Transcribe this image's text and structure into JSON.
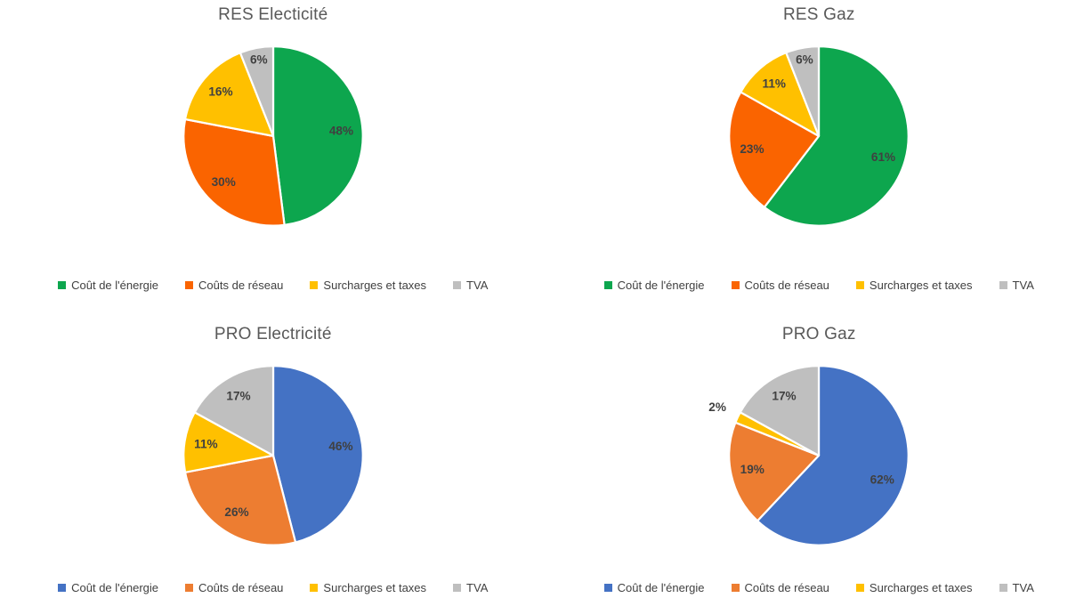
{
  "page": {
    "background": "#FFFFFF",
    "title_color": "#595959",
    "data_label_color": "#404040",
    "legend_text_color": "#404040"
  },
  "chart_data": [
    {
      "type": "pie",
      "title": "RES Electicité",
      "categories": [
        "Coût de l'énergie",
        "Coûts de réseau",
        "Surcharges et taxes",
        "TVA"
      ],
      "values": [
        48,
        30,
        16,
        6
      ],
      "data_labels": [
        "48%",
        "30%",
        "16%",
        "6%"
      ],
      "colors": [
        "#0DA64E",
        "#FA6400",
        "#FFC000",
        "#BFBFBF"
      ],
      "legend_position": "bottom",
      "start_angle_deg": 0,
      "direction": "clockwise"
    },
    {
      "type": "pie",
      "title": "RES Gaz",
      "categories": [
        "Coût de l'énergie",
        "Coûts de réseau",
        "Surcharges et taxes",
        "TVA"
      ],
      "values": [
        61,
        23,
        11,
        6
      ],
      "data_labels": [
        "61%",
        "23%",
        "11%",
        "6%"
      ],
      "colors": [
        "#0DA64E",
        "#FA6400",
        "#FFC000",
        "#BFBFBF"
      ],
      "legend_position": "bottom",
      "start_angle_deg": 0,
      "direction": "clockwise"
    },
    {
      "type": "pie",
      "title": "PRO Electricité",
      "categories": [
        "Coût de l'énergie",
        "Coûts de réseau",
        "Surcharges et taxes",
        "TVA"
      ],
      "values": [
        46,
        26,
        11,
        17
      ],
      "data_labels": [
        "46%",
        "26%",
        "11%",
        "17%"
      ],
      "colors": [
        "#4472C4",
        "#ED7D31",
        "#FFC000",
        "#BFBFBF"
      ],
      "legend_position": "bottom",
      "start_angle_deg": 0,
      "direction": "clockwise"
    },
    {
      "type": "pie",
      "title": "PRO Gaz",
      "categories": [
        "Coût de l'énergie",
        "Coûts de réseau",
        "Surcharges et taxes",
        "TVA"
      ],
      "values": [
        62,
        19,
        2,
        17
      ],
      "data_labels": [
        "62%",
        "19%",
        "2%",
        "17%"
      ],
      "colors": [
        "#4472C4",
        "#ED7D31",
        "#FFC000",
        "#BFBFBF"
      ],
      "legend_position": "bottom",
      "start_angle_deg": 0,
      "direction": "clockwise"
    }
  ]
}
